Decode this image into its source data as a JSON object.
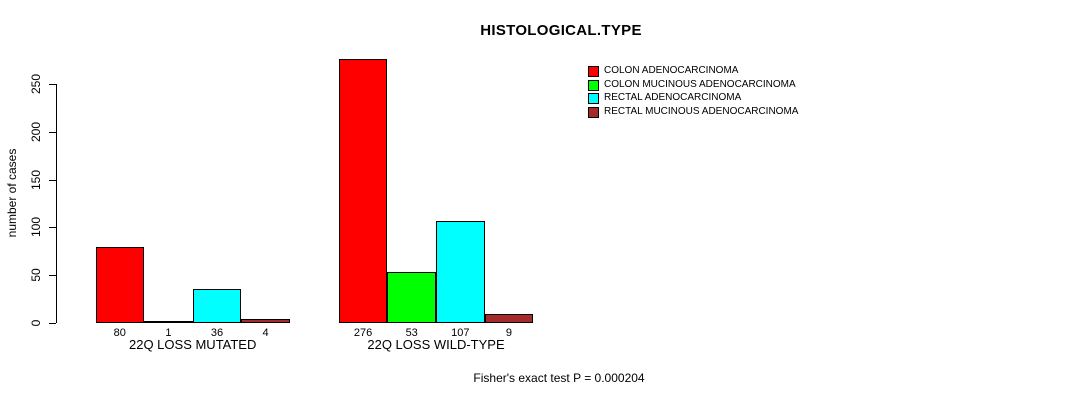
{
  "chart_data": {
    "type": "bar",
    "grouped": true,
    "title": "HISTOLOGICAL.TYPE",
    "ylabel": "number of cases",
    "xlabel": "",
    "categories": [
      "22Q LOSS MUTATED",
      "22Q LOSS WILD-TYPE"
    ],
    "series": [
      {
        "name": "COLON ADENOCARCINOMA",
        "color": "#ff0000",
        "values": [
          80,
          276
        ]
      },
      {
        "name": "COLON MUCINOUS ADENOCARCINOMA",
        "color": "#00ff00",
        "values": [
          1,
          53
        ]
      },
      {
        "name": "RECTAL ADENOCARCINOMA",
        "color": "#00ffff",
        "values": [
          36,
          107
        ]
      },
      {
        "name": "RECTAL MUCINOUS ADENOCARCINOMA",
        "color": "#a52a2a",
        "values": [
          4,
          9
        ]
      }
    ],
    "yticks": [
      0,
      50,
      100,
      150,
      200,
      250
    ],
    "ylim": [
      0,
      250
    ],
    "show_value_labels": true,
    "legend_position": "top-right",
    "grid": false,
    "footnote": "Fisher's exact test P = 0.000204"
  }
}
